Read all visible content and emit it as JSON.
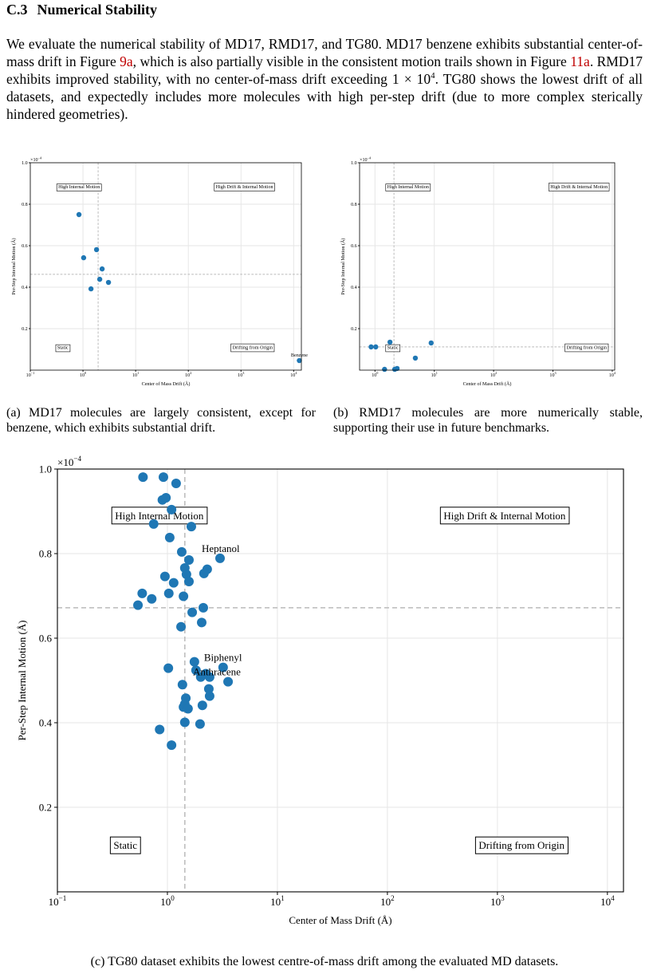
{
  "section": {
    "number": "C.3",
    "title": "Numerical Stability"
  },
  "paragraph": [
    "We evaluate the numerical stability of MD17, RMD17, and TG80. MD17 benzene exhibits substantial center-of-mass drift in Figure ",
    "9a",
    ", which is also partially visible in the consistent motion trails shown in Figure ",
    "11a",
    ". RMD17 exhibits improved stability, with no center-of-mass drift exceeding 1 × 10",
    "4",
    ". TG80 shows the lowest drift of all datasets, and expectedly includes more molecules with high per-step drift (due to more complex sterically hindered geometries)."
  ],
  "captions": [
    "(a) MD17 molecules are largely consistent, except for benzene, which exhibits substantial drift.",
    "(b) RMD17 molecules are more numerically stable, supporting their use in future benchmarks.",
    "(c) TG80 dataset exhibits the lowest centre-of-mass drift among the evaluated MD datasets."
  ],
  "chart_data": [
    {
      "type": "scatter",
      "x_label": "Center of Mass Drift (Å)",
      "y_label": "Per-Step Internal Motion (Å)",
      "y_offset": {
        "label": "×10",
        "exp": "−4"
      },
      "xscale": "log",
      "grid": true,
      "color": "#1f77b4",
      "xlim": [
        0.1,
        14000
      ],
      "ylim": [
        0,
        1
      ],
      "xticks": [
        {
          "value": 0.1,
          "label": "10",
          "exp": "−1"
        },
        {
          "value": 1,
          "label": "10",
          "exp": "0"
        },
        {
          "value": 10,
          "label": "10",
          "exp": "1"
        },
        {
          "value": 100,
          "label": "10",
          "exp": "2"
        },
        {
          "value": 1000,
          "label": "10",
          "exp": "3"
        },
        {
          "value": 10000,
          "label": "10",
          "exp": "4"
        }
      ],
      "yticks": [
        0.2,
        0.4,
        0.6,
        0.8,
        {
          "value": 1,
          "label": "1.0"
        }
      ],
      "ref_x": 1.94,
      "ref_y": 0.462,
      "quadrant_labels": [
        "High Internal Motion",
        "High Drift & Internal Motion",
        "Static",
        "Drifting from Origin"
      ],
      "annotations": [
        "Benzene"
      ],
      "x": [
        0.84,
        1.03,
        1.81,
        2.31,
        2.08,
        3.05,
        1.42,
        12800
      ],
      "values": [
        0.75,
        0.542,
        0.581,
        0.488,
        0.438,
        0.423,
        0.392,
        0.046
      ]
    },
    {
      "type": "scatter",
      "x_label": "Center of Mass Drift (Å)",
      "y_label": "Per-Step Internal Motion (Å)",
      "y_offset": {
        "label": "×10",
        "exp": "−4"
      },
      "xscale": "log",
      "grid": true,
      "color": "#1f77b4",
      "xlim": [
        0.55,
        11000
      ],
      "ylim": [
        0,
        1
      ],
      "xticks": [
        {
          "value": 1,
          "label": "10",
          "exp": "0"
        },
        {
          "value": 10,
          "label": "10",
          "exp": "1"
        },
        {
          "value": 100,
          "label": "10",
          "exp": "2"
        },
        {
          "value": 1000,
          "label": "10",
          "exp": "3"
        },
        {
          "value": 10000,
          "label": "10",
          "exp": "4"
        }
      ],
      "yticks": [
        0.2,
        0.4,
        0.6,
        0.8,
        {
          "value": 1,
          "label": "1.0"
        }
      ],
      "ref_x": 2.09,
      "ref_y": 0.112,
      "quadrant_labels": [
        "High Internal Motion",
        "High Drift & Internal Motion",
        "Static",
        "Drifting from Origin"
      ],
      "annotations": [],
      "x": [
        0.86,
        1.03,
        1.79,
        8.85,
        4.79,
        1.45,
        2.15,
        2.36
      ],
      "values": [
        0.112,
        0.112,
        0.135,
        0.131,
        0.058,
        0.004,
        0.004,
        0.008
      ]
    },
    {
      "type": "scatter",
      "x_label": "Center of Mass Drift (Å)",
      "y_label": "Per-Step Internal Motion (Å)",
      "y_offset": {
        "label": "×10",
        "exp": "−4"
      },
      "xscale": "log",
      "grid": true,
      "color": "#1f77b4",
      "xlim": [
        0.1,
        14000
      ],
      "ylim": [
        0,
        1
      ],
      "xticks": [
        {
          "value": 0.1,
          "label": "10",
          "exp": "−1"
        },
        {
          "value": 1,
          "label": "10",
          "exp": "0"
        },
        {
          "value": 10,
          "label": "10",
          "exp": "1"
        },
        {
          "value": 100,
          "label": "10",
          "exp": "2"
        },
        {
          "value": 1000,
          "label": "10",
          "exp": "3"
        },
        {
          "value": 10000,
          "label": "10",
          "exp": "4"
        }
      ],
      "yticks": [
        0.2,
        0.4,
        0.6,
        0.8,
        {
          "value": 1,
          "label": "1.0"
        }
      ],
      "ref_x": 1.44,
      "ref_y": 0.672,
      "quadrant_labels": [
        "High Internal Motion",
        "High Drift & Internal Motion",
        "Static",
        "Drifting from Origin"
      ],
      "annotations": [
        "Heptanol",
        "Biphenyl",
        "Anthracene"
      ],
      "x": [
        0.6,
        0.92,
        1.2,
        0.9,
        0.97,
        1.09,
        0.75,
        1.65,
        1.05,
        1.35,
        1.57,
        1.44,
        2.3,
        2.15,
        3.01,
        1.49,
        0.95,
        1.14,
        1.57,
        0.59,
        0.72,
        1.03,
        1.4,
        0.54,
        1.68,
        2.12,
        2.05,
        1.33,
        1.76,
        1.02,
        3.21,
        1.82,
        2.01,
        2.23,
        2.42,
        3.56,
        1.37,
        2.38,
        1.47,
        2.42,
        1.44,
        1.4,
        1.54,
        2.08,
        1.44,
        1.98,
        0.85,
        1.09
      ],
      "values": [
        0.981,
        0.981,
        0.966,
        0.927,
        0.932,
        0.904,
        0.87,
        0.864,
        0.838,
        0.804,
        0.785,
        0.766,
        0.763,
        0.753,
        0.789,
        0.751,
        0.746,
        0.731,
        0.734,
        0.706,
        0.693,
        0.706,
        0.699,
        0.678,
        0.661,
        0.672,
        0.637,
        0.627,
        0.544,
        0.529,
        0.531,
        0.524,
        0.508,
        0.516,
        0.508,
        0.497,
        0.49,
        0.48,
        0.458,
        0.463,
        0.444,
        0.437,
        0.433,
        0.441,
        0.401,
        0.397,
        0.384,
        0.347
      ]
    }
  ]
}
